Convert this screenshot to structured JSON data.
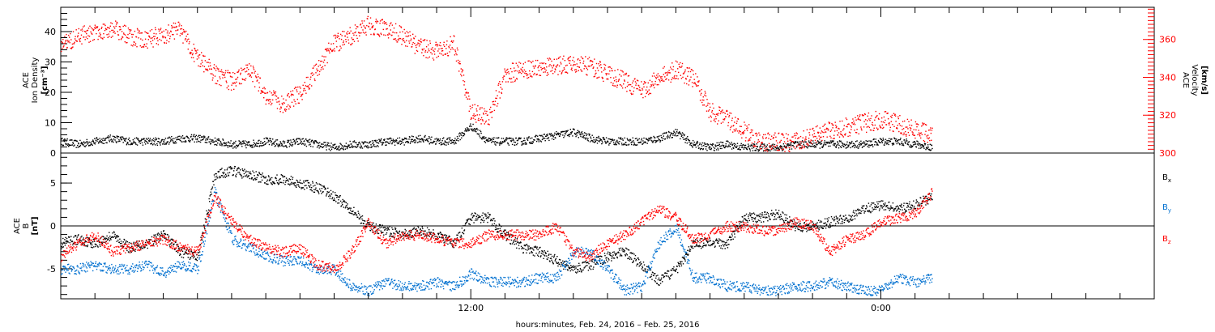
{
  "chart_data": [
    {
      "type": "scatter",
      "panel": "plasma",
      "left_axis": {
        "label_lines": [
          "ACE",
          "Ion Density",
          "[cm⁻³]"
        ],
        "range": [
          0,
          48
        ],
        "ticks": [
          0,
          10,
          20,
          30,
          40
        ],
        "tick_labels": [
          "0",
          "10",
          "20",
          "30",
          "40"
        ]
      },
      "right_axis": {
        "label_lines": [
          "ACE",
          "Velocity",
          "[km/s]"
        ],
        "range": [
          300,
          377
        ],
        "ticks": [
          300,
          320,
          340,
          360
        ],
        "tick_labels": [
          "300",
          "320",
          "340",
          "360"
        ],
        "color": "#ff0000"
      },
      "series": [
        {
          "axis": "left",
          "color": "#000000",
          "x": [
            0,
            0.5,
            1,
            1.5,
            2,
            2.5,
            3,
            3.5,
            4,
            4.5,
            5,
            5.5,
            6,
            6.5,
            7,
            7.5,
            8,
            8.5,
            9,
            9.5,
            10,
            10.5,
            11,
            11.5,
            12,
            12.5,
            13,
            13.5,
            14,
            14.5,
            15,
            15.5,
            16,
            16.5,
            17,
            17.5,
            18,
            18.5,
            19,
            19.5,
            20,
            20.5,
            21,
            21.5,
            22,
            22.5,
            23,
            23.5,
            24,
            24.5,
            25,
            25.5
          ],
          "y": [
            4,
            3,
            4,
            5,
            4,
            4,
            4,
            5,
            5,
            4,
            3,
            3,
            4,
            3,
            4,
            3,
            2,
            3,
            3,
            4,
            4,
            5,
            4,
            4,
            9,
            4,
            4,
            4,
            5,
            6,
            7,
            5,
            4,
            4,
            4,
            5,
            7,
            3,
            2,
            3,
            2,
            2,
            2,
            3,
            3,
            3,
            3,
            3,
            4,
            4,
            3,
            2
          ]
        },
        {
          "axis": "right",
          "color": "#ff0000",
          "x": [
            0,
            0.5,
            1,
            1.5,
            2,
            2.5,
            3,
            3.5,
            4,
            4.5,
            5,
            5.5,
            6,
            6.5,
            7,
            7.5,
            8,
            8.5,
            9,
            9.5,
            10,
            10.5,
            11,
            11.5,
            12,
            12.5,
            13,
            13.5,
            14,
            14.5,
            15,
            15.5,
            16,
            16.5,
            17,
            17.5,
            18,
            18.5,
            19,
            19.5,
            20,
            20.5,
            21,
            21.5,
            22,
            22.5,
            23,
            23.5,
            24,
            24.5,
            25,
            25.5
          ],
          "y": [
            358,
            362,
            364,
            366,
            362,
            360,
            363,
            365,
            350,
            342,
            338,
            345,
            330,
            326,
            332,
            345,
            358,
            362,
            368,
            366,
            362,
            356,
            354,
            358,
            322,
            318,
            342,
            344,
            345,
            346,
            348,
            346,
            342,
            338,
            333,
            340,
            344,
            340,
            322,
            318,
            312,
            306,
            306,
            306,
            310,
            312,
            314,
            316,
            318,
            316,
            312,
            310
          ]
        }
      ]
    },
    {
      "type": "scatter",
      "panel": "magnetic",
      "left_axis": {
        "label_lines": [
          "ACE",
          "B",
          "[nT]"
        ],
        "range": [
          -8.5,
          8.5
        ],
        "ticks": [
          -5,
          0,
          5
        ],
        "tick_labels": [
          "-5",
          "0",
          "5"
        ]
      },
      "zero_line": true,
      "legend": {
        "placement": "right",
        "entries": [
          {
            "text": "B",
            "sub": "x",
            "color": "#000000"
          },
          {
            "text": "B",
            "sub": "y",
            "color": "#0070d0"
          },
          {
            "text": "B",
            "sub": "z",
            "color": "#ff0000"
          }
        ]
      },
      "series": [
        {
          "name": "Bx",
          "color": "#000000",
          "x": [
            0,
            0.5,
            1,
            1.5,
            2,
            2.5,
            3,
            3.5,
            4,
            4.5,
            5,
            5.5,
            6,
            6.5,
            7,
            7.5,
            8,
            8.5,
            9,
            9.5,
            10,
            10.5,
            11,
            11.5,
            12,
            12.5,
            13,
            13.5,
            14,
            14.5,
            15,
            15.5,
            16,
            16.5,
            17,
            17.5,
            18,
            18.5,
            19,
            19.5,
            20,
            20.5,
            21,
            21.5,
            22,
            22.5,
            23,
            23.5,
            24,
            24.5,
            25,
            25.5
          ],
          "y": [
            -2,
            -1.5,
            -2,
            -1,
            -2.5,
            -2,
            -1,
            -3,
            -3.5,
            6,
            6.5,
            6,
            5.5,
            5.5,
            5,
            4.5,
            3.5,
            2,
            0,
            -0.5,
            -1,
            -0.5,
            -1,
            -2,
            1,
            1,
            -1,
            -2.5,
            -3,
            -4,
            -5,
            -4.5,
            -3.5,
            -3,
            -4.5,
            -6.5,
            -5,
            -2,
            -2,
            -2,
            1,
            1,
            1.5,
            0,
            0,
            0.5,
            1,
            2,
            2.5,
            2,
            2.5,
            3.5
          ]
        },
        {
          "name": "By",
          "color": "#0070d0",
          "x": [
            0,
            0.5,
            1,
            1.5,
            2,
            2.5,
            3,
            3.5,
            4,
            4.5,
            5,
            5.5,
            6,
            6.5,
            7,
            7.5,
            8,
            8.5,
            9,
            9.5,
            10,
            10.5,
            11,
            11.5,
            12,
            12.5,
            13,
            13.5,
            14,
            14.5,
            15,
            15.5,
            16,
            16.5,
            17,
            17.5,
            18,
            18.5,
            19,
            19.5,
            20,
            20.5,
            21,
            21.5,
            22,
            22.5,
            23,
            23.5,
            24,
            24.5,
            25,
            25.5
          ],
          "y": [
            -5,
            -5,
            -4.5,
            -5,
            -5,
            -4.5,
            -5.5,
            -4.5,
            -5,
            4,
            -1.5,
            -2.5,
            -3.5,
            -4,
            -4,
            -5,
            -5,
            -7,
            -7.5,
            -6.5,
            -7,
            -7,
            -6.5,
            -7,
            -5.5,
            -6.5,
            -6.5,
            -6.5,
            -6,
            -6,
            -3,
            -3,
            -5,
            -7.5,
            -7,
            -2,
            0,
            -6,
            -6,
            -7,
            -7,
            -7.5,
            -7.5,
            -7,
            -7,
            -6.5,
            -7,
            -7.5,
            -7.5,
            -6,
            -6.5,
            -6
          ]
        },
        {
          "name": "Bz",
          "color": "#ff0000",
          "x": [
            0,
            0.5,
            1,
            1.5,
            2,
            2.5,
            3,
            3.5,
            4,
            4.5,
            5,
            5.5,
            6,
            6.5,
            7,
            7.5,
            8,
            8.5,
            9,
            9.5,
            10,
            10.5,
            11,
            11.5,
            12,
            12.5,
            13,
            13.5,
            14,
            14.5,
            15,
            15.5,
            16,
            16.5,
            17,
            17.5,
            18,
            18.5,
            19,
            19.5,
            20,
            20.5,
            21,
            21.5,
            22,
            22.5,
            23,
            23.5,
            24,
            24.5,
            25,
            25.5
          ],
          "y": [
            -3.5,
            -2,
            -1,
            -3,
            -2.5,
            -2,
            -1.5,
            -2.5,
            -3,
            3.5,
            0.5,
            -1.5,
            -2.5,
            -3,
            -2.5,
            -4.5,
            -5,
            -3,
            0.5,
            -2,
            -1,
            -1,
            -1.5,
            -2,
            -2,
            -1,
            -1,
            -1,
            -1,
            0,
            -3,
            -3.5,
            -2,
            -1,
            0.5,
            2,
            1,
            -1.5,
            -1,
            0,
            0,
            -0.5,
            -0.5,
            0.5,
            0,
            -3,
            -1.5,
            -1,
            0.5,
            1,
            1.5,
            4
          ]
        }
      ]
    }
  ],
  "x_axis": {
    "range": [
      0,
      32
    ],
    "major_ticks": [
      12,
      24
    ],
    "tick_labels": [
      "12:00",
      "0:00"
    ],
    "minor_step": 1,
    "title": "hours:minutes, Feb. 24, 2016 – Feb. 25, 2016"
  }
}
